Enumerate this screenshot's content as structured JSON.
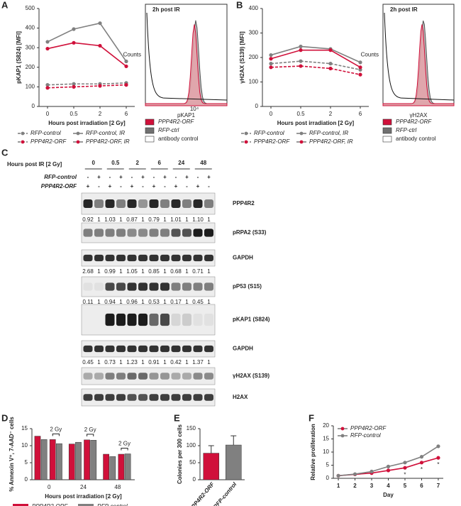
{
  "panel_labels": [
    "A",
    "B",
    "C",
    "D",
    "E",
    "F"
  ],
  "chart_data": [
    {
      "type": "line",
      "ylabel": "pKAP1 (S824) [MFI]",
      "xlabel": "Hours post irradiation [2 Gy]",
      "categories": [
        "0",
        "0.5",
        "2",
        "6"
      ],
      "ylim": [
        0,
        500
      ],
      "yticks": [
        0,
        100,
        200,
        300,
        400,
        500
      ],
      "legend": "bottom",
      "series": [
        {
          "name": "RFP-control",
          "color": "#808080",
          "dash": true,
          "values": [
            110,
            115,
            115,
            120
          ]
        },
        {
          "name": "RFP-control, IR",
          "color": "#808080",
          "dash": false,
          "values": [
            330,
            395,
            425,
            230
          ]
        },
        {
          "name": "PPP4R2-ORF",
          "color": "#d0103a",
          "dash": true,
          "values": [
            95,
            100,
            105,
            110
          ]
        },
        {
          "name": "PPP4R2-ORF, IR",
          "color": "#d0103a",
          "dash": false,
          "values": [
            295,
            325,
            310,
            205
          ]
        }
      ]
    },
    {
      "type": "line",
      "ylabel": "γH2AX (S139) [MFI]",
      "xlabel": "Hours post irradiation [2 Gy]",
      "categories": [
        "0",
        "0.5",
        "2",
        "6"
      ],
      "ylim": [
        0,
        400
      ],
      "yticks": [
        0,
        100,
        200,
        300,
        400
      ],
      "legend": "bottom",
      "series": [
        {
          "name": "RFP-control",
          "color": "#808080",
          "dash": true,
          "values": [
            175,
            185,
            175,
            150
          ]
        },
        {
          "name": "RFP-control, IR",
          "color": "#808080",
          "dash": false,
          "values": [
            210,
            245,
            235,
            180
          ]
        },
        {
          "name": "PPP4R2-ORF",
          "color": "#d0103a",
          "dash": true,
          "values": [
            160,
            165,
            155,
            130
          ]
        },
        {
          "name": "PPP4R2-ORF, IR",
          "color": "#d0103a",
          "dash": false,
          "values": [
            195,
            230,
            230,
            160
          ]
        }
      ]
    },
    {
      "type": "grouped_bar",
      "ylabel": "% Annexin V⁺, 7-AAD⁻ cells",
      "xlabel": "Hours post irradiation [2 Gy]",
      "categories": [
        "0",
        "24",
        "48"
      ],
      "ylim": [
        0,
        15
      ],
      "yticks": [
        0,
        5,
        10,
        15
      ],
      "group_label": "2 Gy",
      "legend": "bottom",
      "series": [
        {
          "name": "PPP4R2-ORF",
          "color": "#d0103a",
          "values": [
            12.8,
            10.5,
            7.5
          ],
          "values_ir": [
            11.8,
            11.7,
            7.5
          ]
        },
        {
          "name": "RFP-control",
          "color": "#808080",
          "values": [
            11.8,
            11.0,
            6.8
          ],
          "values_ir": [
            10.6,
            11.6,
            7.6
          ]
        }
      ]
    },
    {
      "type": "bar",
      "ylabel": "Colonies per 300 cells",
      "categories": [
        "PPP4R2-ORF",
        "RFP-control"
      ],
      "values": [
        78,
        102
      ],
      "errors": [
        22,
        27
      ],
      "colors": [
        "#d0103a",
        "#808080"
      ],
      "ylim": [
        0,
        150
      ],
      "yticks": [
        0,
        50,
        100,
        150
      ]
    },
    {
      "type": "line",
      "ylabel": "Relative proliferation",
      "xlabel": "Day",
      "x": [
        1,
        2,
        3,
        4,
        5,
        6,
        7
      ],
      "xlim": [
        0.7,
        7.3
      ],
      "xticks": [
        1,
        2,
        3,
        4,
        5,
        6,
        7
      ],
      "ylim": [
        0,
        20
      ],
      "yticks": [
        0,
        5,
        10,
        15,
        20
      ],
      "legend": "upper left",
      "significance": {
        "label": "*",
        "x": [
          5,
          6,
          7
        ]
      },
      "series": [
        {
          "name": "PPP4R2-ORF",
          "color": "#d0103a",
          "dash": false,
          "values": [
            1,
            1.5,
            2.0,
            3.0,
            4.0,
            6.0,
            7.8
          ]
        },
        {
          "name": "RFP-control",
          "color": "#808080",
          "dash": false,
          "values": [
            1,
            1.6,
            2.6,
            4.5,
            6.0,
            8.2,
            12.2
          ]
        }
      ]
    }
  ],
  "flow_panels": [
    {
      "title": "2h post IR",
      "ylabel": "Counts",
      "xlabel": "pKAP1",
      "xtick": "10⁴",
      "legend": [
        {
          "name": "PPP4R2-ORF",
          "color": "#d0103a"
        },
        {
          "name": "RFP-ctrl",
          "color": "#707070"
        },
        {
          "name": "antibody control",
          "color": "#ffffff"
        }
      ]
    },
    {
      "title": "2h post IR",
      "ylabel": "Counts",
      "xlabel": "γH2AX",
      "legend": [
        {
          "name": "PPP4R2-ORF",
          "color": "#d0103a"
        },
        {
          "name": "RFP-ctrl",
          "color": "#707070"
        },
        {
          "name": "antibody control",
          "color": "#ffffff"
        }
      ]
    }
  ],
  "blot": {
    "header": "Hours post IR [2 Gy]",
    "timepoints": [
      "0",
      "0.5",
      "2",
      "6",
      "24",
      "48"
    ],
    "conditions": [
      {
        "label": "RFP-control",
        "signs": [
          "-",
          "+",
          "-",
          "+",
          "-",
          "+",
          "-",
          "+",
          "-",
          "+",
          "-",
          "+"
        ]
      },
      {
        "label": "PPP4R2-ORF",
        "signs": [
          "+",
          "-",
          "+",
          "-",
          "+",
          "-",
          "+",
          "-",
          "+",
          "-",
          "+",
          "-"
        ]
      }
    ],
    "blots": [
      {
        "label": "PPP4R2",
        "quant": [
          "0.92",
          "1",
          "1.03",
          "1",
          "0.87",
          "1",
          "0.79",
          "1",
          "1.01",
          "1",
          "1.10",
          "1"
        ]
      },
      {
        "label": "pRPA2 (S33)"
      },
      {
        "label": "GAPDH",
        "quant": [
          "2.68",
          "1",
          "0.99",
          "1",
          "1.05",
          "1",
          "0.85",
          "1",
          "0.68",
          "1",
          "0.71",
          "1"
        ]
      },
      {
        "label": "pP53 (S15)",
        "quant": [
          "0.11",
          "1",
          "0.94",
          "1",
          "0.96",
          "1",
          "0.53",
          "1",
          "0.17",
          "1",
          "0.45",
          "1"
        ]
      },
      {
        "label": "pKAP1 (S824)"
      },
      {
        "label": "GAPDH",
        "quant": [
          "0.45",
          "1",
          "0.73",
          "1",
          "1.23",
          "1",
          "0.91",
          "1",
          "0.42",
          "1",
          "1.37",
          "1"
        ]
      },
      {
        "label": "γH2AX (S139)"
      },
      {
        "label": "H2AX"
      }
    ]
  }
}
